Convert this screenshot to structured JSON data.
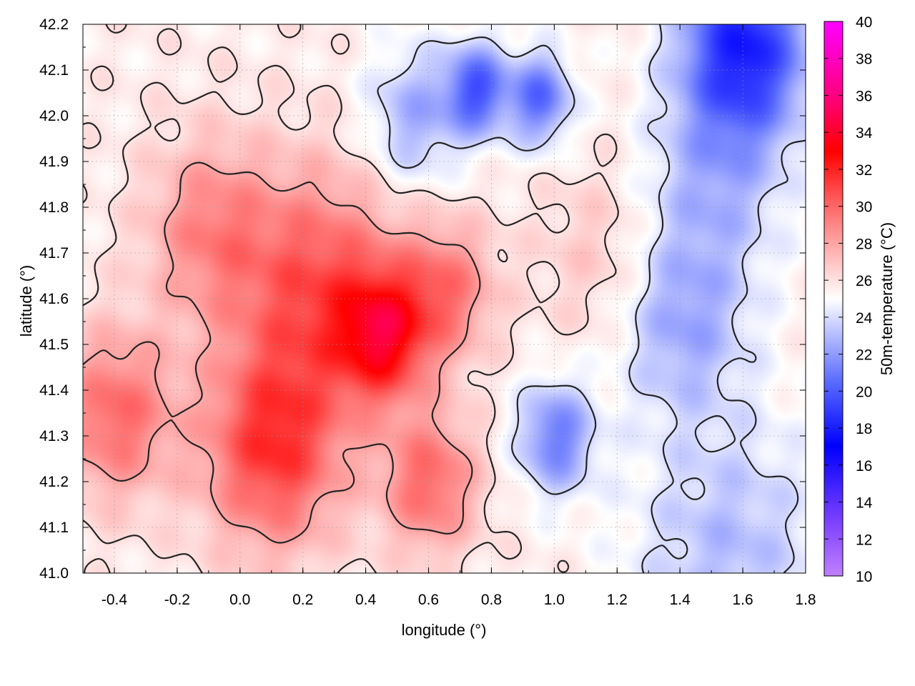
{
  "chart_data": {
    "type": "heatmap",
    "xlabel": "longitude (°)",
    "ylabel": "latitude (°)",
    "colorbar_label": "50m-temperature (°C)",
    "xlim": [
      -0.5,
      1.8
    ],
    "ylim": [
      41.0,
      42.2
    ],
    "x_ticks": [
      "-0.4",
      "-0.2",
      "0.0",
      "0.2",
      "0.4",
      "0.6",
      "0.8",
      "1.0",
      "1.2",
      "1.4",
      "1.6",
      "1.8"
    ],
    "y_ticks": [
      "41.0",
      "41.1",
      "41.2",
      "41.3",
      "41.4",
      "41.5",
      "41.6",
      "41.7",
      "41.8",
      "41.9",
      "42.0",
      "42.1",
      "42.2"
    ],
    "colorbar_range": [
      10,
      40
    ],
    "colorbar_ticks": [
      "10",
      "12",
      "14",
      "16",
      "18",
      "20",
      "22",
      "24",
      "26",
      "28",
      "30",
      "32",
      "34",
      "36",
      "38",
      "40"
    ],
    "colormap": {
      "stops": [
        {
          "value": 10,
          "color": "#c080ff"
        },
        {
          "value": 13,
          "color": "#7a40ff"
        },
        {
          "value": 17,
          "color": "#0000ff"
        },
        {
          "value": 20.5,
          "color": "#5a6cff"
        },
        {
          "value": 23,
          "color": "#b4bcff"
        },
        {
          "value": 25,
          "color": "#ffffff"
        },
        {
          "value": 27,
          "color": "#ffc4c4"
        },
        {
          "value": 30,
          "color": "#ff6868"
        },
        {
          "value": 33,
          "color": "#ff0000"
        },
        {
          "value": 36,
          "color": "#ff0080"
        },
        {
          "value": 40,
          "color": "#ff00ff"
        }
      ]
    },
    "grid": true,
    "overlay": "temperature contour lines",
    "field_hotspots": [
      {
        "lon": 0.1,
        "lat": 41.28,
        "temp": 31.5,
        "spread": 0.22
      },
      {
        "lon": 0.45,
        "lat": 41.52,
        "temp": 32.0,
        "spread": 0.14
      },
      {
        "lon": 0.25,
        "lat": 41.63,
        "temp": 30.5,
        "spread": 0.25
      },
      {
        "lon": -0.4,
        "lat": 41.35,
        "temp": 30.0,
        "spread": 0.18
      },
      {
        "lon": 0.6,
        "lat": 41.2,
        "temp": 30.0,
        "spread": 0.15
      },
      {
        "lon": -0.1,
        "lat": 41.75,
        "temp": 29.0,
        "spread": 0.2
      },
      {
        "lon": 0.65,
        "lat": 41.62,
        "temp": 29.5,
        "spread": 0.15
      },
      {
        "lon": 1.15,
        "lat": 41.7,
        "temp": 27.0,
        "spread": 0.2
      }
    ],
    "field_coldspots": [
      {
        "lon": 1.6,
        "lat": 42.15,
        "temp": 18.0,
        "spread": 0.2
      },
      {
        "lon": 0.75,
        "lat": 42.06,
        "temp": 20.0,
        "spread": 0.1
      },
      {
        "lon": 0.95,
        "lat": 42.04,
        "temp": 20.5,
        "spread": 0.1
      },
      {
        "lon": 1.0,
        "lat": 41.3,
        "temp": 21.0,
        "spread": 0.12
      },
      {
        "lon": 1.4,
        "lat": 41.55,
        "temp": 22.5,
        "spread": 0.2
      },
      {
        "lon": 1.5,
        "lat": 41.85,
        "temp": 23.0,
        "spread": 0.22
      },
      {
        "lon": 1.55,
        "lat": 41.05,
        "temp": 23.0,
        "spread": 0.3
      },
      {
        "lon": 0.55,
        "lat": 42.0,
        "temp": 22.5,
        "spread": 0.15
      }
    ]
  }
}
